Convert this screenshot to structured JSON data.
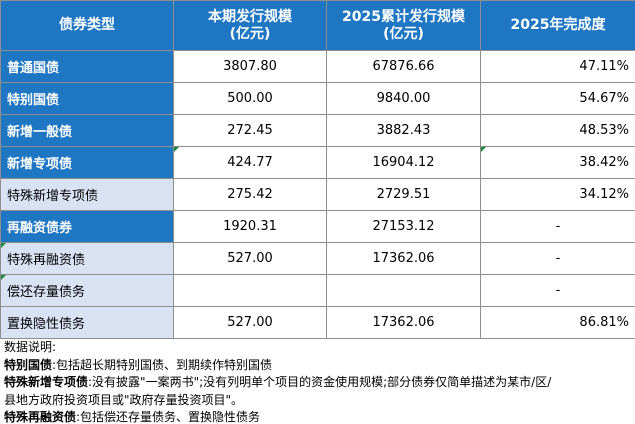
{
  "header": {
    "col1": "债券类型",
    "col2_line1": "本期发行规模",
    "col2_line2": "(亿元)",
    "col3_line1": "2025累计发行规模",
    "col3_line2": "(亿元)",
    "col4": "2025年完成度"
  },
  "rows": [
    {
      "type": "普通国债",
      "current": "3807.80",
      "cumulative": "67876.66",
      "completion": "47.11%"
    },
    {
      "type": "特别国债",
      "current": "500.00",
      "cumulative": "9840.00",
      "completion": "54.67%"
    },
    {
      "type": "新增一般债",
      "current": "272.45",
      "cumulative": "3882.43",
      "completion": "48.53%"
    },
    {
      "type": "新增专项债",
      "current": "424.77",
      "cumulative": "16904.12",
      "completion": "38.42%"
    },
    {
      "type": "特殊新增专项债",
      "current": "275.42",
      "cumulative": "2729.51",
      "completion": "34.12%"
    },
    {
      "type": "再融资债券",
      "current": "1920.31",
      "cumulative": "27153.12",
      "completion": "-"
    },
    {
      "type": "特殊再融资债",
      "current": "527.00",
      "cumulative": "17362.06",
      "completion": "-"
    },
    {
      "type": "偿还存量债务",
      "current": "",
      "cumulative": "",
      "completion": "-"
    },
    {
      "type": "置换隐性债务",
      "current": "527.00",
      "cumulative": "17362.06",
      "completion": "86.81%"
    }
  ],
  "notes": {
    "title": "数据说明:",
    "n1_term": "特别国债",
    "n1_text": ":包括超长期特别国债、到期续作特别国债",
    "n2_term": "特殊新增专项债",
    "n2_text": ":没有披露\"一案两书\";没有列明单个项目的资金使用规模;部分债券仅简单描述为某市/区/",
    "n2_text2": "县地方政府投资项目或\"政府存量投资项目\"。",
    "n3_term": "特殊再融资债",
    "n3_text": ":包括偿还存量债务、置换隐性债务"
  },
  "colors": {
    "header_blue": "#1f77c4",
    "sub_row_bg": "#d9e2f3",
    "border": "#8e8e8e"
  }
}
